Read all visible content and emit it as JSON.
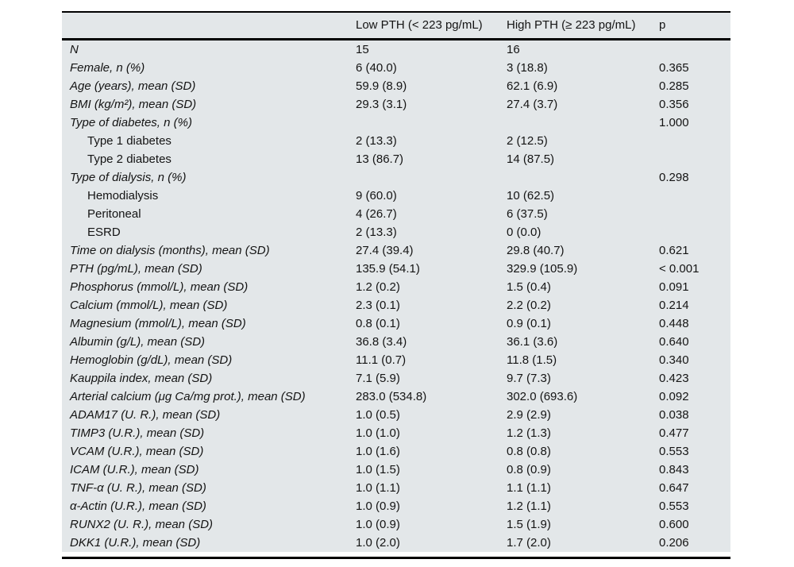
{
  "table": {
    "header": {
      "label": "",
      "low": "Low PTH (< 223 pg/mL)",
      "high": "High PTH (≥ 223 pg/mL)",
      "p": "p"
    },
    "rows": [
      {
        "label": "N",
        "low": "15",
        "high": "16",
        "p": "",
        "indent": false
      },
      {
        "label": "Female, n (%)",
        "low": "6 (40.0)",
        "high": "3 (18.8)",
        "p": "0.365",
        "indent": false
      },
      {
        "label": "Age (years), mean (SD)",
        "low": "59.9 (8.9)",
        "high": "62.1 (6.9)",
        "p": "0.285",
        "indent": false
      },
      {
        "label": "BMI (kg/m²), mean (SD)",
        "low": "29.3 (3.1)",
        "high": "27.4 (3.7)",
        "p": "0.356",
        "indent": false
      },
      {
        "label": "Type of diabetes, n (%)",
        "low": "",
        "high": "",
        "p": "1.000",
        "indent": false
      },
      {
        "label": "Type 1 diabetes",
        "low": "2 (13.3)",
        "high": "2 (12.5)",
        "p": "",
        "indent": true
      },
      {
        "label": "Type 2 diabetes",
        "low": "13 (86.7)",
        "high": "14 (87.5)",
        "p": "",
        "indent": true
      },
      {
        "label": "Type of dialysis, n (%)",
        "low": "",
        "high": "",
        "p": "0.298",
        "indent": false
      },
      {
        "label": "Hemodialysis",
        "low": "9 (60.0)",
        "high": "10 (62.5)",
        "p": "",
        "indent": true
      },
      {
        "label": "Peritoneal",
        "low": "4 (26.7)",
        "high": "6 (37.5)",
        "p": "",
        "indent": true
      },
      {
        "label": "ESRD",
        "low": "2 (13.3)",
        "high": "0 (0.0)",
        "p": "",
        "indent": true
      },
      {
        "label": "Time on dialysis (months), mean (SD)",
        "low": "27.4 (39.4)",
        "high": "29.8 (40.7)",
        "p": "0.621",
        "indent": false
      },
      {
        "label": "PTH (pg/mL), mean (SD)",
        "low": "135.9 (54.1)",
        "high": "329.9 (105.9)",
        "p": "< 0.001",
        "indent": false
      },
      {
        "label": "Phosphorus (mmol/L), mean (SD)",
        "low": "1.2 (0.2)",
        "high": "1.5 (0.4)",
        "p": "0.091",
        "indent": false
      },
      {
        "label": "Calcium (mmol/L), mean (SD)",
        "low": "2.3 (0.1)",
        "high": "2.2 (0.2)",
        "p": "0.214",
        "indent": false
      },
      {
        "label": "Magnesium (mmol/L), mean (SD)",
        "low": "0.8 (0.1)",
        "high": "0.9 (0.1)",
        "p": "0.448",
        "indent": false
      },
      {
        "label": "Albumin (g/L), mean (SD)",
        "low": "36.8 (3.4)",
        "high": "36.1 (3.6)",
        "p": "0.640",
        "indent": false
      },
      {
        "label": "Hemoglobin (g/dL), mean (SD)",
        "low": "11.1 (0.7)",
        "high": "11.8 (1.5)",
        "p": "0.340",
        "indent": false
      },
      {
        "label": "Kauppila index, mean (SD)",
        "low": "7.1 (5.9)",
        "high": "9.7 (7.3)",
        "p": "0.423",
        "indent": false
      },
      {
        "label": "Arterial calcium (μg Ca/mg prot.), mean (SD)",
        "low": "283.0 (534.8)",
        "high": "302.0 (693.6)",
        "p": "0.092",
        "indent": false
      },
      {
        "label": "ADAM17 (U. R.), mean (SD)",
        "low": "1.0 (0.5)",
        "high": "2.9 (2.9)",
        "p": "0.038",
        "indent": false
      },
      {
        "label": "TIMP3 (U.R.), mean (SD)",
        "low": "1.0 (1.0)",
        "high": "1.2 (1.3)",
        "p": "0.477",
        "indent": false
      },
      {
        "label": "VCAM (U.R.), mean (SD)",
        "low": "1.0 (1.6)",
        "high": "0.8 (0.8)",
        "p": "0.553",
        "indent": false
      },
      {
        "label": "ICAM (U.R.), mean (SD)",
        "low": "1.0 (1.5)",
        "high": "0.8 (0.9)",
        "p": "0.843",
        "indent": false
      },
      {
        "label": "TNF-α (U. R.), mean (SD)",
        "low": "1.0 (1.1)",
        "high": "1.1 (1.1)",
        "p": "0.647",
        "indent": false
      },
      {
        "label": "α-Actin (U.R.), mean (SD)",
        "low": "1.0 (0.9)",
        "high": "1.2 (1.1)",
        "p": "0.553",
        "indent": false
      },
      {
        "label": "RUNX2 (U. R.), mean (SD)",
        "low": "1.0 (0.9)",
        "high": "1.5 (1.9)",
        "p": "0.600",
        "indent": false
      },
      {
        "label": "DKK1 (U.R.), mean (SD)",
        "low": "1.0 (2.0)",
        "high": "1.7 (2.0)",
        "p": "0.206",
        "indent": false
      }
    ]
  },
  "colors": {
    "table_bg": "#e3e7e9",
    "rule": "#000000",
    "text": "#141414"
  }
}
